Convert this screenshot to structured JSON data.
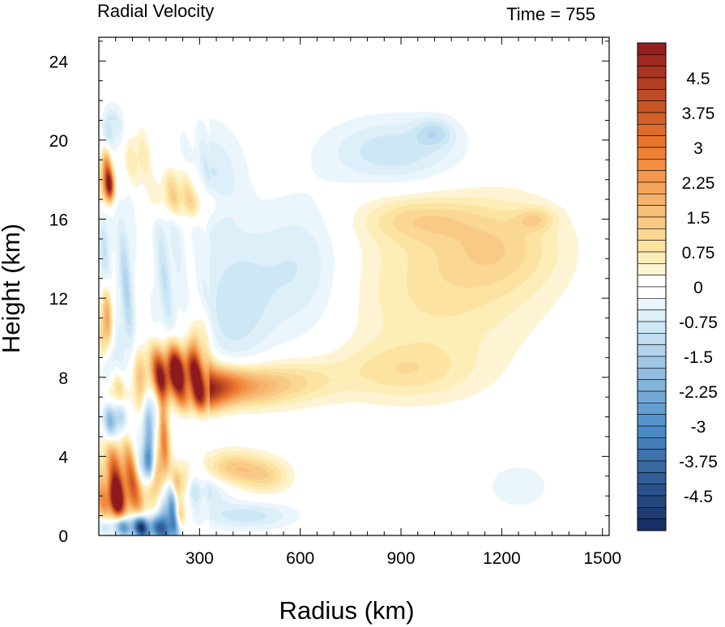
{
  "chart_data": {
    "type": "heatmap",
    "title": "Radial Velocity",
    "subtitle": "Time = 755",
    "xlabel": "Radius (km)",
    "ylabel": "Height (km)",
    "xlim": [
      0,
      1520
    ],
    "ylim": [
      0,
      25.2
    ],
    "x_ticks": [
      300,
      600,
      900,
      1200,
      1500
    ],
    "x_tick_labels": [
      "300",
      "600",
      "900",
      "1200",
      "1500"
    ],
    "y_ticks": [
      0,
      4,
      8,
      12,
      16,
      20,
      24
    ],
    "y_tick_labels": [
      "0",
      "4",
      "8",
      "12",
      "16",
      "20",
      "24"
    ],
    "grid": false,
    "colorbar": {
      "placement": "right",
      "min": -5.25,
      "max": 5.25,
      "step": 0.25,
      "labels": [
        "4.5",
        "3.75",
        "3",
        "2.25",
        "1.5",
        "0.75",
        "0",
        "-0.75",
        "-1.5",
        "-2.25",
        "-3",
        "-3.75",
        "-4.5"
      ],
      "label_values": [
        4.5,
        3.75,
        3,
        2.25,
        1.5,
        0.75,
        0,
        -0.75,
        -1.5,
        -2.25,
        -3,
        -3.75,
        -4.5
      ],
      "colors": {
        "strong_positive": "#8e1a1e",
        "positive": "#ee7a2d",
        "weak_positive": "#fde9a8",
        "zero": "#ffffff",
        "weak_negative": "#d6ecf8",
        "negative": "#4d8ec9",
        "strong_negative": "#162b63"
      }
    },
    "features": [
      {
        "r": 20,
        "z": 18.2,
        "value": 3.8,
        "sr": 12,
        "sz": 0.8
      },
      {
        "r": 30,
        "z": 17.6,
        "value": 4.3,
        "sr": 10,
        "sz": 0.5
      },
      {
        "r": 40,
        "z": 20.5,
        "value": -1.2,
        "sr": 20,
        "sz": 0.8
      },
      {
        "r": 20,
        "z": 14.5,
        "value": -1.0,
        "sr": 14,
        "sz": 2.0
      },
      {
        "r": 20,
        "z": 10.5,
        "value": 3.2,
        "sr": 12,
        "sz": 1.3
      },
      {
        "r": 25,
        "z": 8.6,
        "value": -1.8,
        "sr": 14,
        "sz": 1.0
      },
      {
        "r": 45,
        "z": 5.9,
        "value": -3.0,
        "sr": 20,
        "sz": 0.7
      },
      {
        "r": 50,
        "z": 7.2,
        "value": 1.8,
        "sr": 25,
        "sz": 0.7
      },
      {
        "r": 75,
        "z": 2.7,
        "value": 4.6,
        "sr": 50,
        "sz": 1.4
      },
      {
        "r": 45,
        "z": 1.8,
        "value": 4.0,
        "sr": 22,
        "sz": 0.6
      },
      {
        "r": 90,
        "z": 0.5,
        "value": -3.6,
        "sr": 55,
        "sz": 0.4
      },
      {
        "r": 150,
        "z": 0.3,
        "value": -3.0,
        "sr": 40,
        "sz": 0.4
      },
      {
        "r": 215,
        "z": 0.7,
        "value": -4.0,
        "sr": 15,
        "sz": 0.9
      },
      {
        "r": 140,
        "z": 3.5,
        "value": -4.2,
        "sr": 18,
        "sz": 0.7
      },
      {
        "r": 155,
        "z": 5.5,
        "value": -2.2,
        "sr": 15,
        "sz": 1.5
      },
      {
        "r": 115,
        "z": 4.5,
        "value": -1.5,
        "sr": 18,
        "sz": 1.3
      },
      {
        "r": 180,
        "z": 3.2,
        "value": 1.8,
        "sr": 30,
        "sz": 1.0
      },
      {
        "r": 240,
        "z": 2.6,
        "value": 2.5,
        "sr": 18,
        "sz": 0.6
      },
      {
        "r": 190,
        "z": 4.6,
        "value": 2.8,
        "sr": 12,
        "sz": 1.5
      },
      {
        "r": 200,
        "z": 2.0,
        "value": -1.8,
        "sr": 20,
        "sz": 1.3
      },
      {
        "r": 240,
        "z": 1.1,
        "value": 2.0,
        "sr": 15,
        "sz": 0.5
      },
      {
        "r": 300,
        "z": 2.3,
        "value": -1.0,
        "sr": 60,
        "sz": 0.6
      },
      {
        "r": 210,
        "z": 8.6,
        "value": 3.6,
        "sr": 50,
        "sz": 0.8
      },
      {
        "r": 200,
        "z": 7.8,
        "value": 3.3,
        "sr": 30,
        "sz": 0.7
      },
      {
        "r": 270,
        "z": 8.3,
        "value": 3.2,
        "sr": 40,
        "sz": 0.7
      },
      {
        "r": 340,
        "z": 7.6,
        "value": 3.2,
        "sr": 60,
        "sz": 0.6
      },
      {
        "r": 300,
        "z": 6.9,
        "value": 2.6,
        "sr": 45,
        "sz": 0.5
      },
      {
        "r": 440,
        "z": 7.5,
        "value": 1.6,
        "sr": 80,
        "sz": 0.7
      },
      {
        "r": 580,
        "z": 7.8,
        "value": 0.9,
        "sr": 100,
        "sz": 0.8
      },
      {
        "r": 300,
        "z": 9.8,
        "value": 1.5,
        "sr": 20,
        "sz": 1.0
      },
      {
        "r": 115,
        "z": 7.0,
        "value": 1.2,
        "sr": 18,
        "sz": 1.2
      },
      {
        "r": 400,
        "z": 3.4,
        "value": 1.4,
        "sr": 60,
        "sz": 0.6
      },
      {
        "r": 500,
        "z": 3.0,
        "value": 1.0,
        "sr": 50,
        "sz": 0.6
      },
      {
        "r": 440,
        "z": 1.0,
        "value": -0.9,
        "sr": 100,
        "sz": 0.5
      },
      {
        "r": 400,
        "z": 11.5,
        "value": -0.9,
        "sr": 80,
        "sz": 2.5
      },
      {
        "r": 600,
        "z": 13.5,
        "value": -0.8,
        "sr": 100,
        "sz": 2.5
      },
      {
        "r": 880,
        "z": 19.4,
        "value": -1.0,
        "sr": 140,
        "sz": 1.2
      },
      {
        "r": 1000,
        "z": 20.4,
        "value": -0.8,
        "sr": 40,
        "sz": 0.5
      },
      {
        "r": 260,
        "z": 16.8,
        "value": 1.4,
        "sr": 60,
        "sz": 0.6
      },
      {
        "r": 230,
        "z": 17.8,
        "value": 1.3,
        "sr": 40,
        "sz": 0.7
      },
      {
        "r": 110,
        "z": 19.0,
        "value": 1.0,
        "sr": 30,
        "sz": 1.0
      },
      {
        "r": 200,
        "z": 13.5,
        "value": -0.9,
        "sr": 30,
        "sz": 3.0
      },
      {
        "r": 330,
        "z": 18.0,
        "value": -0.8,
        "sr": 70,
        "sz": 2.0
      },
      {
        "r": 80,
        "z": 12.0,
        "value": -1.2,
        "sr": 20,
        "sz": 4.0
      },
      {
        "r": 1010,
        "z": 12.5,
        "value": 0.8,
        "sr": 200,
        "sz": 3.0
      },
      {
        "r": 1200,
        "z": 14.6,
        "value": 0.85,
        "sr": 130,
        "sz": 1.6
      },
      {
        "r": 1300,
        "z": 16.0,
        "value": 0.8,
        "sr": 40,
        "sz": 0.4
      },
      {
        "r": 950,
        "z": 16.0,
        "value": 0.8,
        "sr": 120,
        "sz": 0.8
      },
      {
        "r": 900,
        "z": 8.3,
        "value": 0.75,
        "sr": 140,
        "sz": 1.0
      },
      {
        "r": 1250,
        "z": 2.5,
        "value": -0.4,
        "sr": 80,
        "sz": 1.0
      }
    ]
  }
}
